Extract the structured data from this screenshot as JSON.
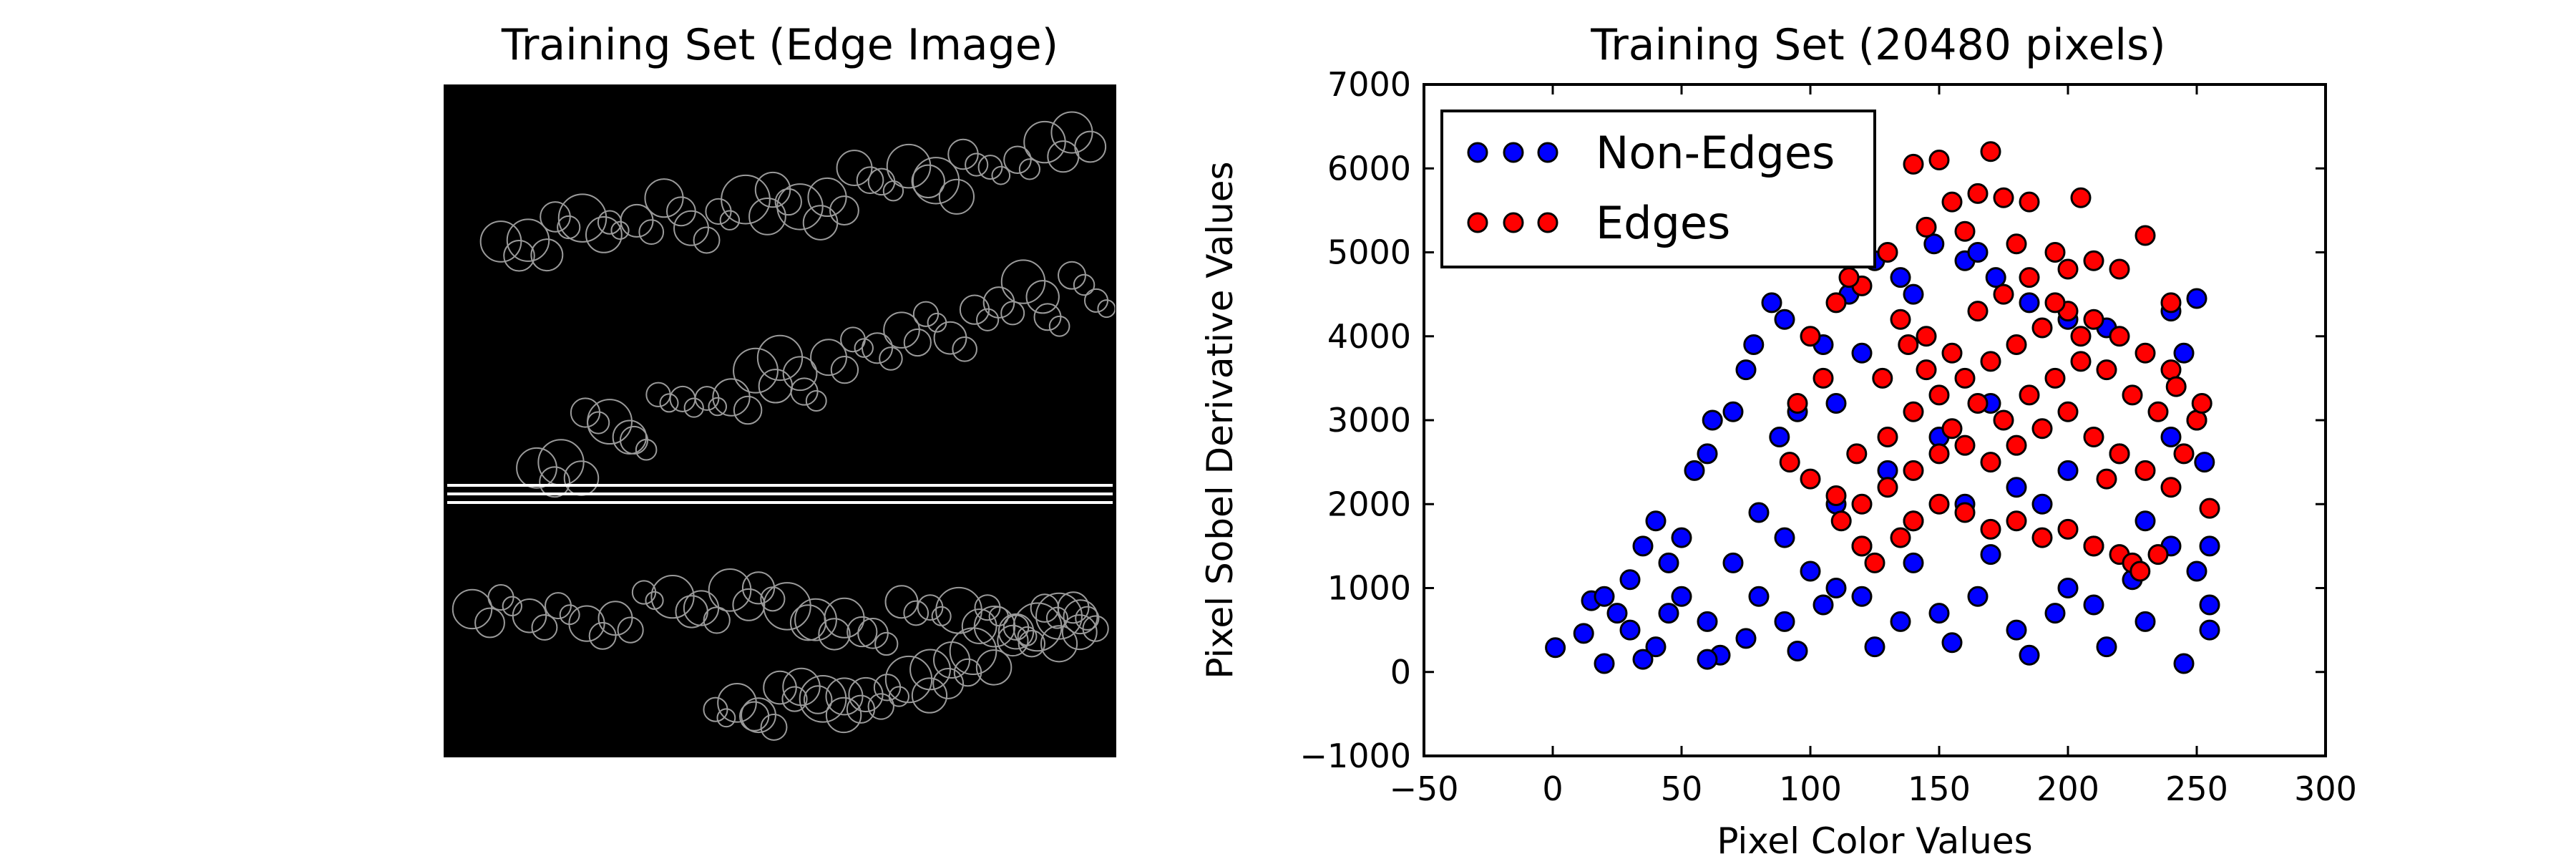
{
  "panels": {
    "left_title": "Training Set (Edge Image)",
    "right_title": "Training Set (20480 pixels)"
  },
  "chart_data": {
    "type": "scatter",
    "title": "Training Set (20480 pixels)",
    "xlabel": "Pixel Color Values",
    "ylabel": "Pixel Sobel Derivative Values",
    "xlim": [
      -50,
      300
    ],
    "ylim": [
      -1000,
      7000
    ],
    "x_ticks": [
      "−50",
      "0",
      "50",
      "100",
      "150",
      "200",
      "250",
      "300"
    ],
    "y_ticks": [
      "−1000",
      "0",
      "1000",
      "2000",
      "3000",
      "4000",
      "5000",
      "6000",
      "7000"
    ],
    "legend_position": "upper-left",
    "grid": false,
    "series": [
      {
        "name": "Non-Edges",
        "color": "#0000ff",
        "points": [
          [
            1,
            290
          ],
          [
            12,
            460
          ],
          [
            15,
            850
          ],
          [
            20,
            900
          ],
          [
            25,
            700
          ],
          [
            30,
            1100
          ],
          [
            35,
            1500
          ],
          [
            40,
            1800
          ],
          [
            45,
            1300
          ],
          [
            55,
            2400
          ],
          [
            60,
            2600
          ],
          [
            62,
            3000
          ],
          [
            70,
            3100
          ],
          [
            75,
            3600
          ],
          [
            78,
            3900
          ],
          [
            85,
            4400
          ],
          [
            90,
            4200
          ],
          [
            88,
            2800
          ],
          [
            95,
            3100
          ],
          [
            105,
            3900
          ],
          [
            110,
            3200
          ],
          [
            115,
            4500
          ],
          [
            120,
            3800
          ],
          [
            125,
            4900
          ],
          [
            135,
            4700
          ],
          [
            140,
            4500
          ],
          [
            148,
            5100
          ],
          [
            160,
            4900
          ],
          [
            165,
            5000
          ],
          [
            172,
            4700
          ],
          [
            185,
            4400
          ],
          [
            200,
            4200
          ],
          [
            215,
            4100
          ],
          [
            240,
            4300
          ],
          [
            250,
            4450
          ],
          [
            245,
            3800
          ],
          [
            250,
            3000
          ],
          [
            253,
            2500
          ],
          [
            255,
            1500
          ],
          [
            255,
            500
          ],
          [
            20,
            100
          ],
          [
            40,
            300
          ],
          [
            60,
            600
          ],
          [
            80,
            900
          ],
          [
            100,
            1200
          ],
          [
            120,
            1500
          ],
          [
            140,
            1800
          ],
          [
            160,
            2000
          ],
          [
            180,
            2200
          ],
          [
            200,
            2400
          ],
          [
            220,
            2600
          ],
          [
            240,
            2800
          ],
          [
            30,
            500
          ],
          [
            50,
            900
          ],
          [
            70,
            1300
          ],
          [
            90,
            1600
          ],
          [
            110,
            2000
          ],
          [
            130,
            2400
          ],
          [
            150,
            2800
          ],
          [
            170,
            3200
          ],
          [
            190,
            2000
          ],
          [
            210,
            1500
          ],
          [
            230,
            1800
          ],
          [
            250,
            1200
          ],
          [
            35,
            150
          ],
          [
            65,
            200
          ],
          [
            95,
            250
          ],
          [
            125,
            300
          ],
          [
            155,
            350
          ],
          [
            185,
            200
          ],
          [
            215,
            300
          ],
          [
            245,
            100
          ],
          [
            45,
            700
          ],
          [
            75,
            400
          ],
          [
            105,
            800
          ],
          [
            135,
            600
          ],
          [
            165,
            900
          ],
          [
            195,
            700
          ],
          [
            225,
            1100
          ],
          [
            255,
            800
          ],
          [
            150,
            700
          ],
          [
            50,
            1600
          ],
          [
            80,
            1900
          ],
          [
            110,
            1000
          ],
          [
            140,
            1300
          ],
          [
            170,
            1400
          ],
          [
            200,
            1000
          ],
          [
            230,
            600
          ],
          [
            60,
            150
          ],
          [
            90,
            600
          ],
          [
            120,
            900
          ],
          [
            180,
            500
          ],
          [
            210,
            800
          ],
          [
            240,
            1500
          ]
        ]
      },
      {
        "name": "Edges",
        "color": "#ff0000",
        "points": [
          [
            140,
            6050
          ],
          [
            150,
            6100
          ],
          [
            170,
            6200
          ],
          [
            155,
            5600
          ],
          [
            165,
            5700
          ],
          [
            175,
            5650
          ],
          [
            185,
            5600
          ],
          [
            205,
            5650
          ],
          [
            210,
            4900
          ],
          [
            220,
            4800
          ],
          [
            230,
            5200
          ],
          [
            240,
            4400
          ],
          [
            145,
            5300
          ],
          [
            160,
            5250
          ],
          [
            180,
            5100
          ],
          [
            195,
            5000
          ],
          [
            200,
            4800
          ],
          [
            130,
            5000
          ],
          [
            120,
            4600
          ],
          [
            115,
            4700
          ],
          [
            110,
            4400
          ],
          [
            100,
            4000
          ],
          [
            105,
            3500
          ],
          [
            95,
            3200
          ],
          [
            92,
            2500
          ],
          [
            100,
            2300
          ],
          [
            110,
            2100
          ],
          [
            120,
            1500
          ],
          [
            125,
            1300
          ],
          [
            135,
            1600
          ],
          [
            140,
            1800
          ],
          [
            150,
            2000
          ],
          [
            160,
            1900
          ],
          [
            170,
            1700
          ],
          [
            180,
            1800
          ],
          [
            190,
            1600
          ],
          [
            200,
            1700
          ],
          [
            210,
            1500
          ],
          [
            220,
            1400
          ],
          [
            225,
            1300
          ],
          [
            228,
            1200
          ],
          [
            235,
            1400
          ],
          [
            240,
            2200
          ],
          [
            245,
            2600
          ],
          [
            250,
            3000
          ],
          [
            252,
            3200
          ],
          [
            255,
            1950
          ],
          [
            130,
            2800
          ],
          [
            140,
            3100
          ],
          [
            150,
            3300
          ],
          [
            160,
            3500
          ],
          [
            170,
            3700
          ],
          [
            180,
            3900
          ],
          [
            190,
            4100
          ],
          [
            200,
            4300
          ],
          [
            210,
            4200
          ],
          [
            220,
            4000
          ],
          [
            230,
            3800
          ],
          [
            240,
            3600
          ],
          [
            135,
            4200
          ],
          [
            145,
            4000
          ],
          [
            155,
            3800
          ],
          [
            165,
            4300
          ],
          [
            175,
            4500
          ],
          [
            185,
            4700
          ],
          [
            195,
            4400
          ],
          [
            205,
            4000
          ],
          [
            215,
            3600
          ],
          [
            225,
            3300
          ],
          [
            170,
            2500
          ],
          [
            180,
            2700
          ],
          [
            190,
            2900
          ],
          [
            200,
            3100
          ],
          [
            210,
            2800
          ],
          [
            220,
            2600
          ],
          [
            230,
            2400
          ],
          [
            160,
            2700
          ],
          [
            150,
            2600
          ],
          [
            140,
            2400
          ],
          [
            130,
            2200
          ],
          [
            120,
            2000
          ],
          [
            185,
            3300
          ],
          [
            195,
            3500
          ],
          [
            205,
            3700
          ],
          [
            215,
            2300
          ],
          [
            175,
            3000
          ],
          [
            165,
            3200
          ],
          [
            155,
            2900
          ],
          [
            145,
            3600
          ],
          [
            235,
            3100
          ],
          [
            242,
            3400
          ],
          [
            112,
            1800
          ],
          [
            118,
            2600
          ],
          [
            128,
            3500
          ],
          [
            138,
            3900
          ]
        ]
      }
    ]
  },
  "edge_image": {
    "horizontal_lines": 3
  }
}
